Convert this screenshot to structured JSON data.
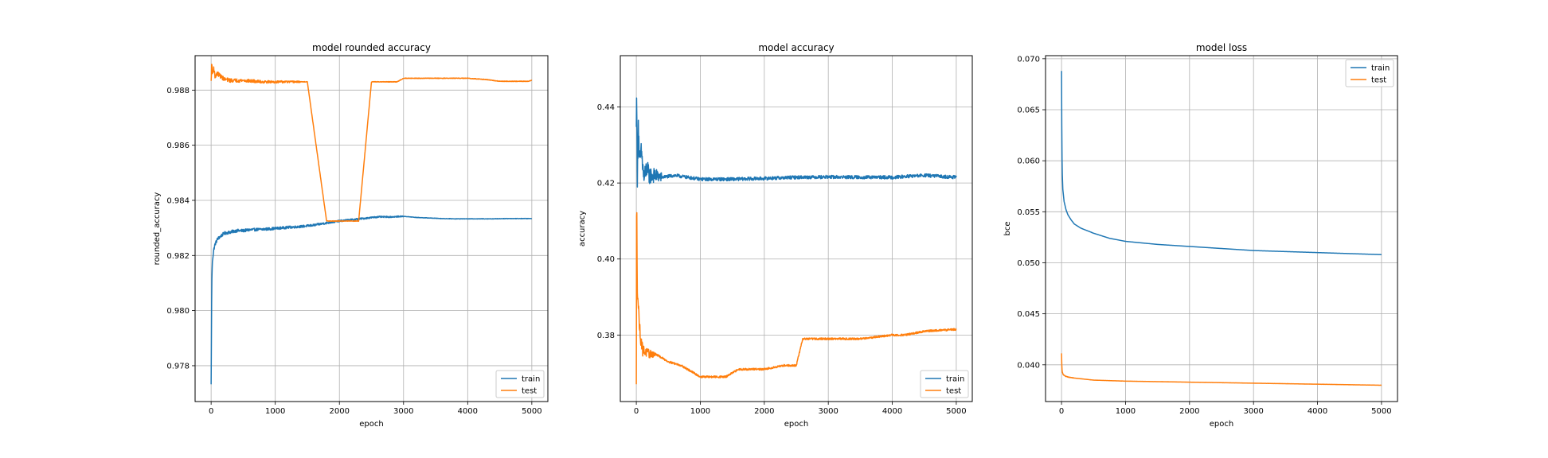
{
  "chart_data": [
    {
      "type": "line",
      "title": "model rounded accuracy",
      "xlabel": "epoch",
      "ylabel": "rounded_accuracy",
      "xlim": [
        -250,
        5250
      ],
      "ylim": [
        0.9767,
        0.98925
      ],
      "xticks": [
        0,
        1000,
        2000,
        3000,
        4000,
        5000
      ],
      "xtick_labels": [
        "0",
        "1000",
        "2000",
        "3000",
        "4000",
        "5000"
      ],
      "yticks": [
        0.978,
        0.98,
        0.982,
        0.984,
        0.986,
        0.988
      ],
      "ytick_labels": [
        "0.978",
        "0.980",
        "0.982",
        "0.984",
        "0.986",
        "0.988"
      ],
      "grid": true,
      "legend_loc": "lower-right",
      "series": [
        {
          "name": "train",
          "color": "#1f77b4",
          "x": [
            0,
            10,
            20,
            40,
            60,
            100,
            150,
            200,
            300,
            400,
            500,
            600,
            800,
            1000,
            1200,
            1400,
            1600,
            1800,
            2000,
            2200,
            2400,
            2600,
            2800,
            3000,
            3200,
            3400,
            3600,
            3800,
            4000,
            4200,
            4400,
            4600,
            4800,
            5000
          ],
          "values": [
            0.9773,
            0.981,
            0.9818,
            0.9822,
            0.9824,
            0.9826,
            0.9827,
            0.9828,
            0.98285,
            0.9829,
            0.9829,
            0.98293,
            0.98295,
            0.98298,
            0.98302,
            0.98305,
            0.9831,
            0.98318,
            0.98325,
            0.9833,
            0.98335,
            0.9834,
            0.9834,
            0.98342,
            0.98338,
            0.98336,
            0.98334,
            0.98333,
            0.98333,
            0.98333,
            0.98333,
            0.98334,
            0.98334,
            0.98334
          ],
          "noise": 6e-05,
          "noise_until": 3000
        },
        {
          "name": "test",
          "color": "#ff7f0e",
          "x": [
            0,
            10,
            20,
            40,
            60,
            100,
            200,
            300,
            500,
            800,
            1000,
            1500,
            1800,
            2000,
            2300,
            2500,
            2900,
            3000,
            3500,
            3900,
            4000,
            4300,
            4400,
            4500,
            4800,
            4950,
            5000
          ],
          "values": [
            0.9883,
            0.989,
            0.9886,
            0.9888,
            0.9885,
            0.9886,
            0.9884,
            0.98835,
            0.98835,
            0.9883,
            0.9883,
            0.9883,
            0.98325,
            0.98325,
            0.98325,
            0.9883,
            0.9883,
            0.98843,
            0.98843,
            0.98843,
            0.98843,
            0.98838,
            0.98835,
            0.98832,
            0.98832,
            0.98832,
            0.98836
          ],
          "noise": 8e-05,
          "noise_until": 1400
        }
      ]
    },
    {
      "type": "line",
      "title": "model accuracy",
      "xlabel": "epoch",
      "ylabel": "accuracy",
      "xlim": [
        -250,
        5250
      ],
      "ylim": [
        0.3625,
        0.4535
      ],
      "xticks": [
        0,
        1000,
        2000,
        3000,
        4000,
        5000
      ],
      "xtick_labels": [
        "0",
        "1000",
        "2000",
        "3000",
        "4000",
        "5000"
      ],
      "yticks": [
        0.38,
        0.4,
        0.42,
        0.44
      ],
      "ytick_labels": [
        "0.38",
        "0.40",
        "0.42",
        "0.44"
      ],
      "grid": true,
      "legend_loc": "lower-right",
      "series": [
        {
          "name": "train",
          "color": "#1f77b4",
          "x": [
            0,
            5,
            15,
            30,
            50,
            80,
            120,
            160,
            200,
            300,
            400,
            600,
            800,
            1000,
            1500,
            2000,
            2500,
            3000,
            3500,
            4000,
            4500,
            5000
          ],
          "values": [
            0.433,
            0.449,
            0.418,
            0.437,
            0.425,
            0.428,
            0.421,
            0.424,
            0.422,
            0.422,
            0.4215,
            0.422,
            0.4215,
            0.421,
            0.421,
            0.4212,
            0.4215,
            0.4216,
            0.4215,
            0.4215,
            0.422,
            0.4215
          ],
          "noise": 0.0035,
          "noise_until": 400
        },
        {
          "name": "test",
          "color": "#ff7f0e",
          "x": [
            0,
            5,
            15,
            30,
            60,
            100,
            200,
            300,
            500,
            700,
            1000,
            1400,
            1600,
            2000,
            2300,
            2500,
            2600,
            3000,
            3500,
            4000,
            4200,
            4500,
            5000
          ],
          "values": [
            0.366,
            0.421,
            0.393,
            0.388,
            0.38,
            0.376,
            0.375,
            0.375,
            0.373,
            0.372,
            0.369,
            0.369,
            0.371,
            0.371,
            0.372,
            0.372,
            0.379,
            0.379,
            0.379,
            0.38,
            0.38,
            0.381,
            0.3815
          ],
          "noise": 0.002,
          "noise_until": 300
        }
      ]
    },
    {
      "type": "line",
      "title": "model loss",
      "xlabel": "epoch",
      "ylabel": "bce",
      "xlim": [
        -250,
        5250
      ],
      "ylim": [
        0.0364,
        0.0703
      ],
      "xticks": [
        0,
        1000,
        2000,
        3000,
        4000,
        5000
      ],
      "xtick_labels": [
        "0",
        "1000",
        "2000",
        "3000",
        "4000",
        "5000"
      ],
      "yticks": [
        0.04,
        0.045,
        0.05,
        0.055,
        0.06,
        0.065,
        0.07
      ],
      "ytick_labels": [
        "0.040",
        "0.045",
        "0.050",
        "0.055",
        "0.060",
        "0.065",
        "0.070"
      ],
      "grid": true,
      "legend_loc": "upper-right",
      "series": [
        {
          "name": "train",
          "color": "#1f77b4",
          "x": [
            0,
            5,
            10,
            20,
            40,
            70,
            100,
            150,
            200,
            300,
            500,
            750,
            1000,
            1500,
            2000,
            2500,
            3000,
            3500,
            4000,
            4500,
            5000
          ],
          "values": [
            0.0688,
            0.062,
            0.059,
            0.0572,
            0.056,
            0.0552,
            0.0547,
            0.0542,
            0.0538,
            0.0534,
            0.0529,
            0.0524,
            0.0521,
            0.0518,
            0.0516,
            0.0514,
            0.0512,
            0.0511,
            0.051,
            0.0509,
            0.0508
          ],
          "noise": 0,
          "noise_until": 0
        },
        {
          "name": "test",
          "color": "#ff7f0e",
          "x": [
            0,
            5,
            10,
            30,
            60,
            100,
            200,
            500,
            1000,
            2000,
            3000,
            4000,
            5000
          ],
          "values": [
            0.0411,
            0.0398,
            0.0393,
            0.039,
            0.0389,
            0.0388,
            0.0387,
            0.0385,
            0.0384,
            0.0383,
            0.0382,
            0.0381,
            0.038
          ],
          "noise": 4e-05,
          "noise_until": 200
        }
      ]
    }
  ]
}
